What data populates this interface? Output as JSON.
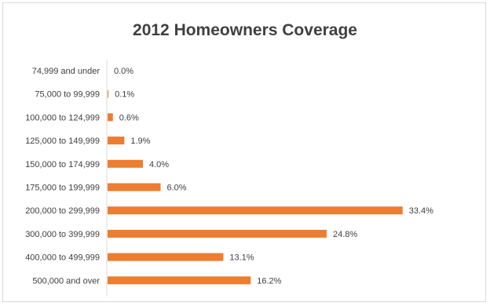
{
  "chart_data": {
    "type": "bar",
    "orientation": "horizontal",
    "title": "2012 Homeowners Coverage",
    "categories": [
      "74,999 and under",
      "75,000 to 99,999",
      "100,000 to 124,999",
      "125,000 to 149,999",
      "150,000 to 174,999",
      "175,000 to 199,999",
      "200,000 to 299,999",
      "300,000 to 399,999",
      "400,000 to 499,999",
      "500,000 and over"
    ],
    "values": [
      0.0,
      0.1,
      0.6,
      1.9,
      4.0,
      6.0,
      33.4,
      24.8,
      13.1,
      16.2
    ],
    "data_labels": [
      "0.0%",
      "0.1%",
      "0.6%",
      "1.9%",
      "4.0%",
      "6.0%",
      "33.4%",
      "24.8%",
      "13.1%",
      "16.2%"
    ],
    "xlim": [
      0,
      36
    ],
    "grid": false,
    "legend": "none",
    "bar_color": "#ed7d31"
  }
}
